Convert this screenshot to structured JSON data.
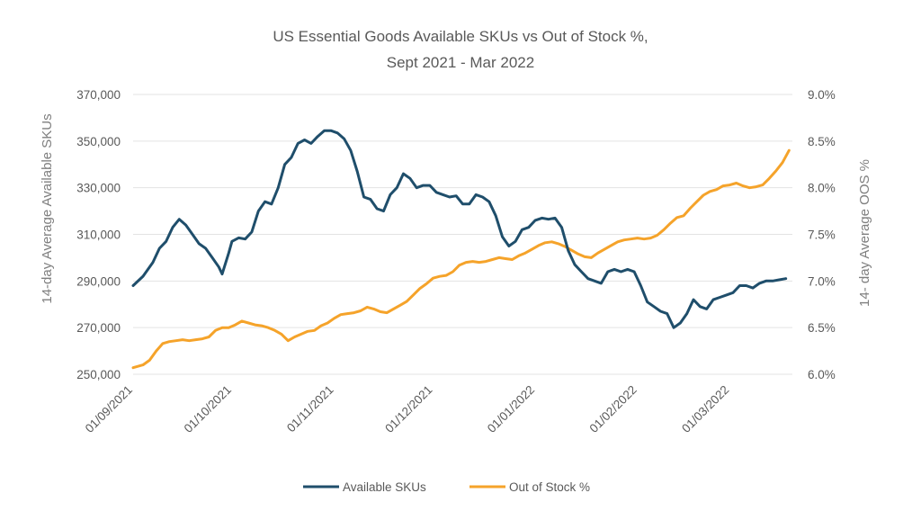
{
  "chart_data": {
    "type": "line",
    "title_line1": "US Essential Goods Available SKUs vs Out of Stock %,",
    "title_line2": "Sept 2021 - Mar 2022",
    "ylabel_left": "14-day Average Available SKUs",
    "ylabel_right": "14- day Average OOS %",
    "ylim_left": [
      250000,
      370000
    ],
    "ylim_right": [
      6.0,
      9.0
    ],
    "left_ticks": [
      "250,000",
      "270,000",
      "290,000",
      "310,000",
      "330,000",
      "350,000",
      "370,000"
    ],
    "right_ticks": [
      "6.0%",
      "6.5%",
      "7.0%",
      "7.5%",
      "8.0%",
      "8.5%",
      "9.0%"
    ],
    "x_ticks": [
      "01/09/2021",
      "01/10/2021",
      "01/11/2021",
      "01/12/2021",
      "01/01/2022",
      "01/02/2022",
      "01/03/2022"
    ],
    "x_tick_days": [
      0,
      30,
      61,
      91,
      122,
      153,
      181
    ],
    "x_range_days": [
      0,
      200
    ],
    "legend_position": "bottom",
    "colors": {
      "skus": "#1f4e6b",
      "oos": "#f5a32a"
    },
    "series": [
      {
        "name": "Available SKUs",
        "axis": "left",
        "x": [
          0,
          3,
          6,
          8,
          10,
          12,
          14,
          16,
          18,
          20,
          22,
          24,
          26,
          27,
          29,
          30,
          32,
          34,
          36,
          38,
          40,
          42,
          44,
          46,
          48,
          50,
          52,
          54,
          56,
          58,
          60,
          62,
          64,
          66,
          68,
          70,
          72,
          74,
          76,
          78,
          80,
          82,
          84,
          86,
          88,
          90,
          92,
          94,
          96,
          98,
          100,
          102,
          104,
          106,
          108,
          110,
          112,
          114,
          116,
          118,
          120,
          122,
          124,
          126,
          128,
          130,
          132,
          134,
          136,
          138,
          140,
          142,
          144,
          146,
          148,
          150,
          152,
          154,
          156,
          158,
          160,
          162,
          164,
          166,
          168,
          170,
          172,
          174,
          176,
          178,
          180,
          182,
          184,
          186,
          188,
          190,
          192,
          194,
          196,
          198
        ],
        "values": [
          288000,
          292000,
          298000,
          304000,
          307000,
          313000,
          316500,
          314000,
          310000,
          306000,
          304000,
          300000,
          296000,
          293000,
          302000,
          307000,
          308500,
          308000,
          311000,
          320000,
          324000,
          323000,
          330000,
          340000,
          343000,
          349000,
          350500,
          349000,
          352000,
          354500,
          354500,
          353500,
          351000,
          346000,
          337000,
          326000,
          325000,
          321000,
          320000,
          327000,
          330000,
          336000,
          334000,
          330000,
          331000,
          331000,
          328000,
          327000,
          326000,
          326500,
          323000,
          323000,
          327000,
          326000,
          324000,
          318000,
          309000,
          305000,
          307000,
          312000,
          313000,
          316000,
          317000,
          316500,
          317000,
          313000,
          303000,
          297000,
          294000,
          291000,
          290000,
          289000,
          294000,
          295000,
          294000,
          295000,
          294000,
          288000,
          281000,
          279000,
          277000,
          276000,
          270000,
          272000,
          276000,
          282000,
          279000,
          278000,
          282000,
          283000,
          284000,
          285000,
          288000,
          288000,
          287000,
          289000,
          290000,
          290000,
          290500,
          291000
        ]
      },
      {
        "name": "Out of Stock %",
        "axis": "right",
        "x": [
          0,
          3,
          5,
          7,
          9,
          11,
          13,
          15,
          17,
          19,
          21,
          23,
          25,
          27,
          29,
          31,
          33,
          35,
          37,
          39,
          41,
          43,
          45,
          47,
          49,
          51,
          53,
          55,
          57,
          59,
          61,
          63,
          65,
          67,
          69,
          71,
          73,
          75,
          77,
          79,
          81,
          83,
          85,
          87,
          89,
          91,
          93,
          95,
          97,
          99,
          101,
          103,
          105,
          107,
          109,
          111,
          113,
          115,
          117,
          119,
          121,
          123,
          125,
          127,
          129,
          131,
          133,
          135,
          137,
          139,
          141,
          143,
          145,
          147,
          149,
          151,
          153,
          155,
          157,
          159,
          161,
          163,
          165,
          167,
          169,
          171,
          173,
          175,
          177,
          179,
          181,
          183,
          185,
          187,
          189,
          191,
          193,
          195,
          197,
          199
        ],
        "values": [
          6.07,
          6.1,
          6.15,
          6.25,
          6.33,
          6.35,
          6.36,
          6.37,
          6.36,
          6.37,
          6.38,
          6.4,
          6.47,
          6.5,
          6.5,
          6.53,
          6.57,
          6.55,
          6.53,
          6.52,
          6.5,
          6.47,
          6.43,
          6.36,
          6.4,
          6.43,
          6.46,
          6.47,
          6.52,
          6.55,
          6.6,
          6.64,
          6.65,
          6.66,
          6.68,
          6.72,
          6.7,
          6.67,
          6.66,
          6.7,
          6.74,
          6.78,
          6.85,
          6.92,
          6.97,
          7.03,
          7.05,
          7.06,
          7.1,
          7.17,
          7.2,
          7.21,
          7.2,
          7.21,
          7.23,
          7.25,
          7.24,
          7.23,
          7.27,
          7.3,
          7.34,
          7.38,
          7.41,
          7.42,
          7.4,
          7.37,
          7.33,
          7.29,
          7.26,
          7.25,
          7.3,
          7.34,
          7.38,
          7.42,
          7.44,
          7.45,
          7.46,
          7.45,
          7.46,
          7.49,
          7.55,
          7.62,
          7.68,
          7.7,
          7.78,
          7.85,
          7.92,
          7.96,
          7.98,
          8.02,
          8.03,
          8.05,
          8.02,
          8.0,
          8.01,
          8.03,
          8.1,
          8.18,
          8.27,
          8.4
        ]
      }
    ]
  }
}
